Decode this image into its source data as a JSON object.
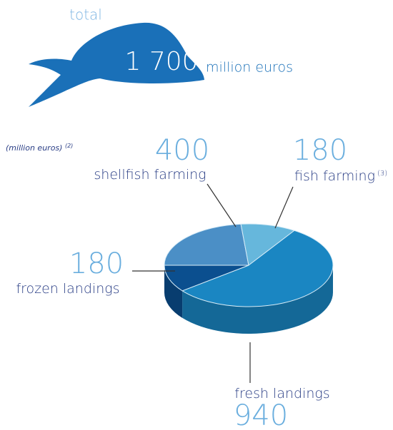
{
  "chart_data": {
    "type": "pie",
    "total_label": "total",
    "total": 1700,
    "total_value_label": "1 700",
    "total_unit": "million euros",
    "subtitle": "(million euros)",
    "subtitle_note": "(2)",
    "categories": [
      "shellfish farming",
      "fish farming",
      "fresh landings",
      "frozen landings"
    ],
    "category_notes": [
      null,
      "(3)",
      null,
      null
    ],
    "values": [
      400,
      180,
      940,
      180
    ],
    "colors": [
      "#4b8fc6",
      "#66b7dc",
      "#1a86c2",
      "#0b4f8f"
    ]
  }
}
